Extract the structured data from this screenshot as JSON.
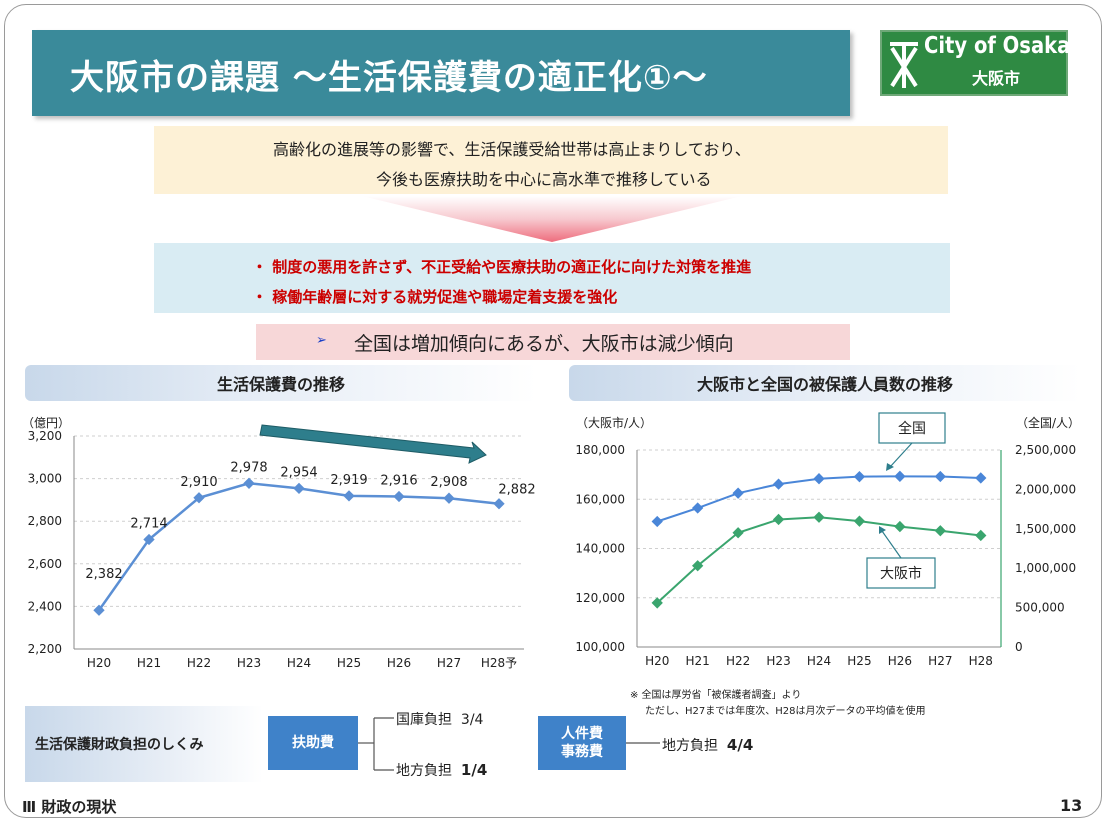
{
  "title": "大阪市の課題 〜生活保護費の適正化①〜",
  "logo": {
    "text_en": "City of Osaka",
    "text_jp": "大阪市",
    "icon": "osaka-city-emblem-icon"
  },
  "summary": {
    "line1": "高齢化の進展等の影響で、生活保護受給世帯は高止まりしており、",
    "line2": "今後も医療扶助を中心に高水準で推移している"
  },
  "measures": [
    "・ 制度の悪用を許さず、不正受給や医療扶助の適正化に向けた対策を推進",
    "・ 稼働年齢層に対する就労促進や職場定着支援を強化"
  ],
  "highlight": {
    "marker": "➢",
    "text": "全国は増加傾向にあるが、大阪市は減少傾向"
  },
  "left_section": {
    "heading": "生活保護費の推移"
  },
  "right_section": {
    "heading": "大阪市と全国の被保護人員数の推移"
  },
  "chart_data": [
    {
      "type": "line",
      "title": "生活保護費の推移",
      "unit_label": "（億円）",
      "categories": [
        "H20",
        "H21",
        "H22",
        "H23",
        "H24",
        "H25",
        "H26",
        "H27",
        "H28予"
      ],
      "values": [
        2382,
        2714,
        2910,
        2978,
        2954,
        2919,
        2916,
        2908,
        2882
      ],
      "value_labels": [
        "2,382",
        "2,714",
        "2,910",
        "2,978",
        "2,954",
        "2,919",
        "2,916",
        "2,908",
        "2,882"
      ],
      "ylim": [
        2200,
        3200
      ],
      "y_ticks": [
        2200,
        2400,
        2600,
        2800,
        3000,
        3200
      ],
      "y_tick_labels": [
        "2,200",
        "2,400",
        "2,600",
        "2,800",
        "3,000",
        "3,200"
      ],
      "grid": true,
      "color": "#5b8fd4"
    },
    {
      "type": "line",
      "title": "大阪市と全国の被保護人員数の推移",
      "left_unit": "（大阪市/人）",
      "right_unit": "（全国/人）",
      "categories": [
        "H20",
        "H21",
        "H22",
        "H23",
        "H24",
        "H25",
        "H26",
        "H27",
        "H28"
      ],
      "series": [
        {
          "name": "全国",
          "axis": "right",
          "color": "#4a86d8",
          "values": [
            1592629,
            1763572,
            1952063,
            2067244,
            2135708,
            2161612,
            2165895,
            2163685,
            2145438
          ]
        },
        {
          "name": "大阪市",
          "axis": "left",
          "color": "#3aa56e",
          "values": [
            117900,
            133000,
            146400,
            151800,
            152700,
            151100,
            148900,
            147200,
            145300
          ]
        }
      ],
      "left_ylim": [
        100000,
        180000
      ],
      "left_ticks": [
        100000,
        120000,
        140000,
        160000,
        180000
      ],
      "left_tick_labels": [
        "100,000",
        "120,000",
        "140,000",
        "160,000",
        "180,000"
      ],
      "right_ylim": [
        0,
        2500000
      ],
      "right_ticks": [
        0,
        500000,
        1000000,
        1500000,
        2000000,
        2500000
      ],
      "right_tick_labels": [
        "0",
        "500,000",
        "1,000,000",
        "1,500,000",
        "2,000,000",
        "2,500,000"
      ],
      "grid": true
    }
  ],
  "notes": {
    "line1": "※ 全国は厚労省「被保護者調査」より",
    "line2": "ただし、H27までは年度次、H28は月次データの平均値を使用"
  },
  "finance": {
    "label": "生活保護財政負担のしくみ",
    "fujo": "扶助費",
    "kuni_label": "国庫負担",
    "kuni_value": "3/4",
    "chiho_label": "地方負担",
    "chiho_value": "1/4",
    "jinken_line1": "人件費",
    "jinken_line2": "事務費",
    "chiho2_label": "地方負担",
    "chiho2_value": "4/4"
  },
  "footer": {
    "section": "Ⅲ 財政の現状",
    "page": "13"
  }
}
